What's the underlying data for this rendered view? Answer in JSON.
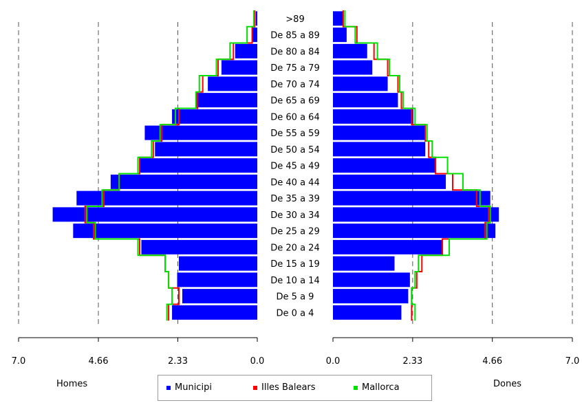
{
  "chart_data": {
    "type": "population-pyramid",
    "categories": [
      ">89",
      "De 85 a 89",
      "De 80 a 84",
      "De 75 a 79",
      "De 70 a 74",
      "De 65 a 69",
      "De 60 a 64",
      "De 55 a 59",
      "De 50 a 54",
      "De 45 a 49",
      "De 40 a 44",
      "De 35 a 39",
      "De 30 a 34",
      "De 25 a 29",
      "De 20 a 24",
      "De 15 a 19",
      "De 10 a 14",
      "De 5 a 9",
      "De 0 a 4"
    ],
    "left_label": "Homes",
    "right_label": "Dones",
    "x_ticks": [
      "7.0",
      "4.66",
      "2.33",
      "0.0"
    ],
    "x_ticks_right": [
      "0.0",
      "2.33",
      "4.66",
      "7.0"
    ],
    "xlim": [
      0,
      7.0
    ],
    "series": [
      {
        "name": "Municipi",
        "color": "#0000ff",
        "style": "bars",
        "homes": [
          0.05,
          0.15,
          0.65,
          1.05,
          1.45,
          1.8,
          2.5,
          3.3,
          3.0,
          3.45,
          4.3,
          5.3,
          6.0,
          5.4,
          3.4,
          2.3,
          2.35,
          2.2,
          2.5
        ],
        "dones": [
          0.3,
          0.4,
          1.0,
          1.15,
          1.6,
          1.9,
          2.35,
          2.7,
          2.7,
          3.0,
          3.3,
          4.6,
          4.85,
          4.75,
          3.2,
          1.8,
          2.25,
          2.2,
          2.0
        ]
      },
      {
        "name": "Illes Balears",
        "color": "#ff0000",
        "style": "step",
        "homes": [
          0.08,
          0.15,
          0.7,
          1.15,
          1.6,
          1.75,
          2.3,
          2.8,
          3.05,
          3.45,
          4.05,
          4.5,
          5.05,
          4.8,
          3.45,
          2.7,
          2.6,
          2.3,
          2.6
        ],
        "dones": [
          0.3,
          0.7,
          1.2,
          1.6,
          1.9,
          2.0,
          2.3,
          2.7,
          2.8,
          3.0,
          3.5,
          4.2,
          4.55,
          4.45,
          3.2,
          2.6,
          2.45,
          2.3,
          2.3
        ]
      },
      {
        "name": "Mallorca",
        "color": "#00e000",
        "style": "step",
        "homes": [
          0.1,
          0.3,
          0.8,
          1.2,
          1.7,
          1.8,
          2.4,
          2.85,
          3.1,
          3.5,
          4.05,
          4.55,
          5.0,
          4.75,
          3.5,
          2.7,
          2.6,
          2.5,
          2.65
        ],
        "dones": [
          0.35,
          0.65,
          1.3,
          1.65,
          1.95,
          2.05,
          2.4,
          2.75,
          2.9,
          3.35,
          3.8,
          4.3,
          4.6,
          4.5,
          3.4,
          2.5,
          2.4,
          2.3,
          2.4
        ]
      }
    ],
    "grid": "dashed-vertical-at-ticks",
    "legend_position": "bottom-center"
  }
}
